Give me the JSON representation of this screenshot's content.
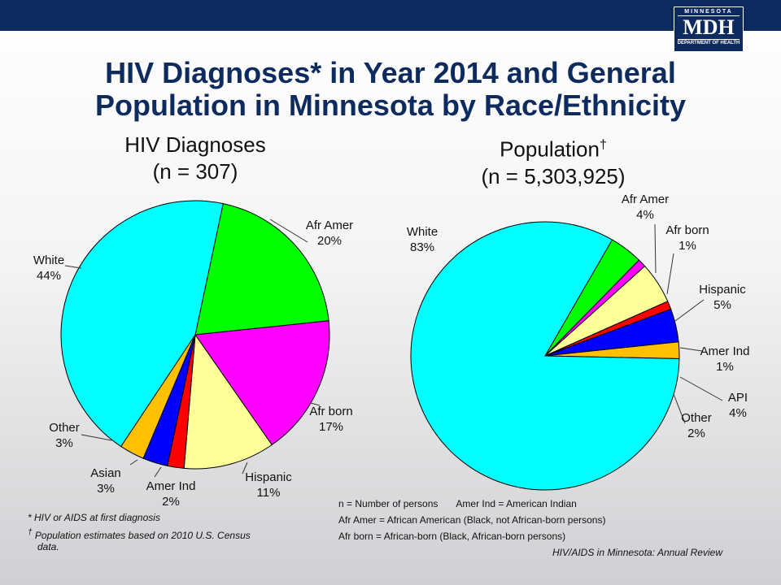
{
  "header": {
    "logo": {
      "top": "MINNESOTA",
      "main": "MDH",
      "bottom": "DEPARTMENT OF HEALTH"
    },
    "title_line1": "HIV Diagnoses* in Year 2014 and General",
    "title_line2": "Population in Minnesota by Race/Ethnicity"
  },
  "colors": {
    "white": "#00FFFF",
    "afr_amer": "#00FF00",
    "afr_born": "#FF00FF",
    "hispanic": "#FFFF99",
    "amer_ind": "#FF0000",
    "asian_api": "#0000FF",
    "other": "#FFC000",
    "title": "#0D2B5E"
  },
  "chart_data": [
    {
      "type": "pie",
      "title_line1": "HIV Diagnoses",
      "title_line2": "(n = 307)",
      "slices": [
        {
          "label": "Afr Amer",
          "value": 20,
          "pct_label": "20%",
          "color_key": "afr_amer"
        },
        {
          "label": "Afr born",
          "value": 17,
          "pct_label": "17%",
          "color_key": "afr_born"
        },
        {
          "label": "Hispanic",
          "value": 11,
          "pct_label": "11%",
          "color_key": "hispanic"
        },
        {
          "label": "Amer Ind",
          "value": 2,
          "pct_label": "2%",
          "color_key": "amer_ind"
        },
        {
          "label": "Asian",
          "value": 3,
          "pct_label": "3%",
          "color_key": "asian_api"
        },
        {
          "label": "Other",
          "value": 3,
          "pct_label": "3%",
          "color_key": "other"
        },
        {
          "label": "White",
          "value": 44,
          "pct_label": "44%",
          "color_key": "white"
        }
      ]
    },
    {
      "type": "pie",
      "title_line1": "Population",
      "title_sup": "†",
      "title_line2": "(n = 5,303,925)",
      "slices": [
        {
          "label": "Afr Amer",
          "value": 4,
          "pct_label": "4%",
          "color_key": "afr_amer"
        },
        {
          "label": "Afr born",
          "value": 1,
          "pct_label": "1%",
          "color_key": "afr_born"
        },
        {
          "label": "Hispanic",
          "value": 5,
          "pct_label": "5%",
          "color_key": "hispanic"
        },
        {
          "label": "Amer Ind",
          "value": 1,
          "pct_label": "1%",
          "color_key": "amer_ind"
        },
        {
          "label": "API",
          "value": 4,
          "pct_label": "4%",
          "color_key": "asian_api"
        },
        {
          "label": "Other",
          "value": 2,
          "pct_label": "2%",
          "color_key": "other"
        },
        {
          "label": "White",
          "value": 83,
          "pct_label": "83%",
          "color_key": "white"
        }
      ]
    }
  ],
  "notes": {
    "note1": "* HIV or AIDS at first diagnosis",
    "note2_sym": "†",
    "note2_line1": "Population estimates based on 2010 U.S. Census",
    "note2_line2": "data."
  },
  "legend": {
    "line1a": "n = Number of persons",
    "line1b": "Amer Ind = American Indian",
    "line2": "Afr Amer = African American (Black, not African-born persons)",
    "line3": "Afr born = African-born (Black, African-born persons)"
  },
  "source": "HIV/AIDS in Minnesota: Annual Review"
}
